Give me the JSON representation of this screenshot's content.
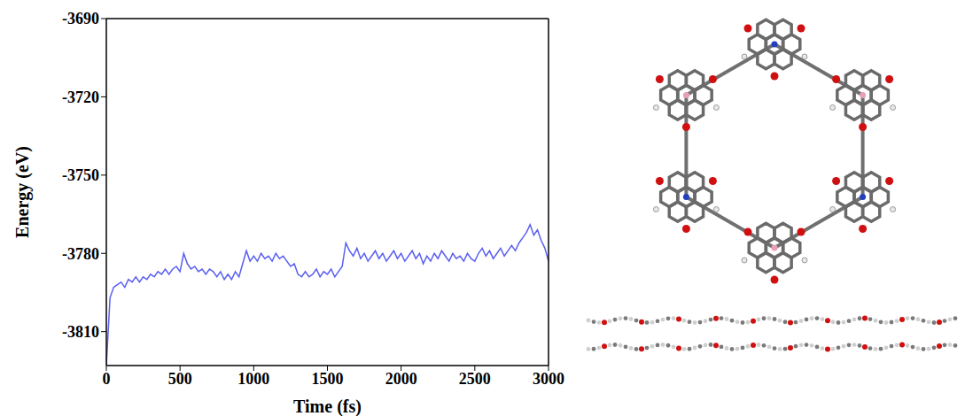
{
  "chart_data": {
    "type": "line",
    "x_label": "Time (fs)",
    "y_label": "Energy (eV)",
    "xlim": [
      0,
      3000
    ],
    "xticks": [
      0,
      500,
      1000,
      1500,
      2000,
      2500,
      3000
    ],
    "ylim": [
      -3823,
      -3690
    ],
    "yticks": [
      -3690,
      -3720,
      -3750,
      -3780,
      -3810
    ],
    "grid": false,
    "color": "#5a5ff0",
    "x": [
      0,
      25,
      50,
      75,
      100,
      125,
      150,
      175,
      200,
      225,
      250,
      275,
      300,
      325,
      350,
      375,
      400,
      425,
      450,
      475,
      500,
      525,
      550,
      575,
      600,
      625,
      650,
      675,
      700,
      725,
      750,
      775,
      800,
      825,
      850,
      875,
      900,
      925,
      950,
      975,
      1000,
      1025,
      1050,
      1075,
      1100,
      1125,
      1150,
      1175,
      1200,
      1225,
      1250,
      1275,
      1300,
      1325,
      1350,
      1375,
      1400,
      1425,
      1450,
      1475,
      1500,
      1525,
      1550,
      1575,
      1600,
      1625,
      1650,
      1675,
      1700,
      1725,
      1750,
      1775,
      1800,
      1825,
      1850,
      1875,
      1900,
      1925,
      1950,
      1975,
      2000,
      2025,
      2050,
      2075,
      2100,
      2125,
      2150,
      2175,
      2200,
      2225,
      2250,
      2275,
      2300,
      2325,
      2350,
      2375,
      2400,
      2425,
      2450,
      2475,
      2500,
      2525,
      2550,
      2575,
      2600,
      2625,
      2650,
      2675,
      2700,
      2725,
      2750,
      2775,
      2800,
      2825,
      2850,
      2875,
      2900,
      2925,
      2950,
      2975,
      3000
    ],
    "values": [
      -3823,
      -3797,
      -3793,
      -3792,
      -3791,
      -3793,
      -3790,
      -3791,
      -3789,
      -3791,
      -3789,
      -3790,
      -3788,
      -3789,
      -3787,
      -3788,
      -3786,
      -3788,
      -3786,
      -3785,
      -3787,
      -3780,
      -3784,
      -3786,
      -3785,
      -3787,
      -3786,
      -3788,
      -3786,
      -3787,
      -3789,
      -3787,
      -3790,
      -3788,
      -3790,
      -3787,
      -3789,
      -3784,
      -3779,
      -3783,
      -3781,
      -3783,
      -3780,
      -3782,
      -3781,
      -3783,
      -3780,
      -3782,
      -3781,
      -3783,
      -3785,
      -3784,
      -3788,
      -3789,
      -3787,
      -3789,
      -3788,
      -3786,
      -3789,
      -3787,
      -3788,
      -3786,
      -3789,
      -3787,
      -3785,
      -3776,
      -3779,
      -3781,
      -3778,
      -3782,
      -3780,
      -3783,
      -3781,
      -3779,
      -3782,
      -3780,
      -3783,
      -3781,
      -3779,
      -3782,
      -3780,
      -3783,
      -3781,
      -3779,
      -3782,
      -3780,
      -3784,
      -3781,
      -3783,
      -3780,
      -3782,
      -3779,
      -3781,
      -3783,
      -3780,
      -3782,
      -3781,
      -3783,
      -3780,
      -3782,
      -3783,
      -3780,
      -3778,
      -3781,
      -3779,
      -3782,
      -3780,
      -3778,
      -3781,
      -3779,
      -3777,
      -3779,
      -3776,
      -3774,
      -3772,
      -3769,
      -3773,
      -3771,
      -3775,
      -3778,
      -3783
    ]
  }
}
